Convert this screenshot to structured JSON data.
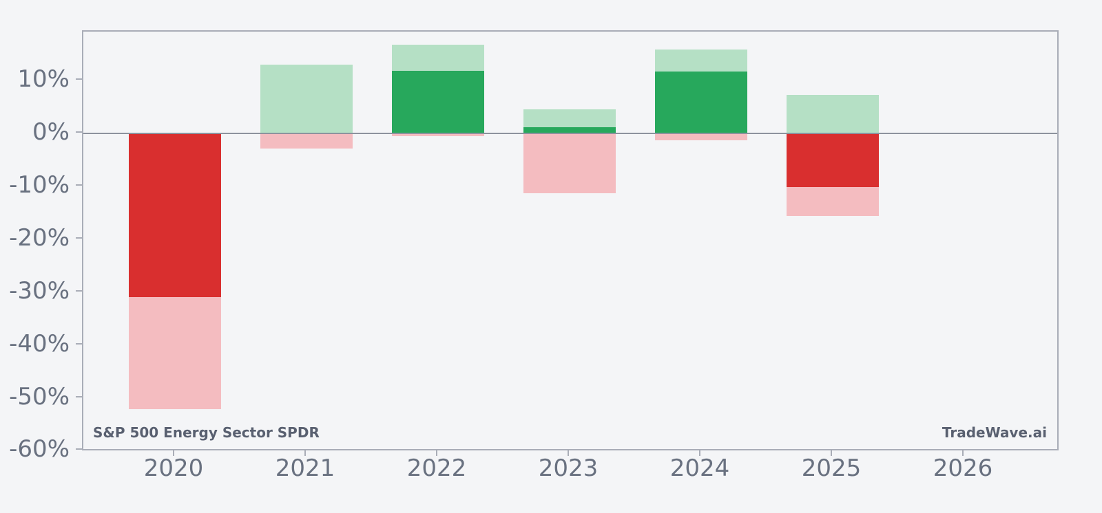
{
  "figure": {
    "background": "#f4f5f7"
  },
  "chart_data": {
    "type": "bar",
    "variant": "yearly-return-with-intra-year-range",
    "title": "S&P 500 Energy Sector SPDR",
    "watermark": "TradeWave.ai",
    "categories": [
      "2020",
      "2021",
      "2022",
      "2023",
      "2024",
      "2025",
      "2026"
    ],
    "series": [
      {
        "name": "year-return-pct",
        "role": "body-dark-bar",
        "values": [
          -31.0,
          0.0,
          11.8,
          1.1,
          11.6,
          -10.2,
          null
        ]
      },
      {
        "name": "intra-year-high-pct",
        "role": "range-light-bar-top",
        "values": [
          0.0,
          13.0,
          16.7,
          4.5,
          15.8,
          7.2,
          null
        ]
      },
      {
        "name": "intra-year-low-pct",
        "role": "range-light-bar-bottom",
        "values": [
          -52.2,
          -2.9,
          -0.6,
          -11.3,
          -1.3,
          -15.6,
          null
        ]
      }
    ],
    "ylim": [
      -60.2,
      19.2
    ],
    "yticks": [
      10,
      0,
      -10,
      -20,
      -30,
      -40,
      -50,
      -60
    ],
    "ytick_suffix": "%",
    "grid": false,
    "legend": "none",
    "colors": {
      "return_positive": "#27a85c",
      "return_negative": "#d92f2f",
      "range_positive": "#b5e0c5",
      "range_negative": "#f4bcc0",
      "axis_frame": "#a9adb7",
      "zero_line": "#8d929d",
      "tick_text": "#697180",
      "annotation_text": "#596070"
    }
  }
}
